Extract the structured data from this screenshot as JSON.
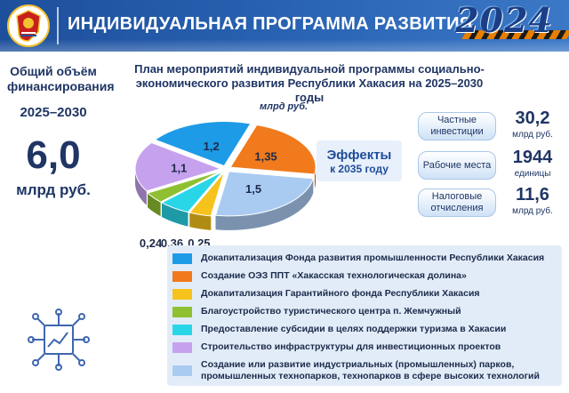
{
  "header": {
    "title": "ИНДИВИДУАЛЬНАЯ ПРОГРАММА РАЗВИТИЯ",
    "year": "2024",
    "emblem_icon": "republic-khakassia-emblem-icon"
  },
  "left_panel": {
    "label": "Общий объём финансирования",
    "period": "2025–2030",
    "value": "6,0",
    "unit": "млрд руб."
  },
  "chart_data": {
    "type": "pie",
    "title": "План мероприятий индивидуальной программы социально-экономического развития Республики Хакасия на 2025–2030 годы",
    "unit_label": "млрд руб.",
    "slices": [
      {
        "label": "Докапитализация Фонда развития промышленности Республики Хакасия",
        "value": 1.2,
        "display": "1,2",
        "color": "#1e9be6"
      },
      {
        "label": "Создание ОЭЗ ППТ «Хакасская технологическая долина»",
        "value": 1.35,
        "display": "1,35",
        "color": "#f07a1c"
      },
      {
        "label": "Создание или развитие индустриальных (промышленных) парков, промышленных технопарков, технопарков в сфере высоких технологий",
        "value": 1.5,
        "display": "1,5",
        "color": "#a9cbf2"
      },
      {
        "label": "Докапитализация Гарантийного фонда Республики Хакасия",
        "value": 0.25,
        "display": "0,25",
        "color": "#f6c21c"
      },
      {
        "label": "Предоставление субсидии в целях поддержки туризма в Хакасии",
        "value": 0.36,
        "display": "0,36",
        "color": "#29d6e8"
      },
      {
        "label": "Благоустройство туристического центра п. Жемчужный",
        "value": 0.24,
        "display": "0,24",
        "color": "#8fc031"
      },
      {
        "label": "Строительство инфраструктуры для инвестиционных проектов",
        "value": 1.1,
        "display": "1,1",
        "color": "#c6a2ee"
      }
    ]
  },
  "effects": {
    "title": "Эффекты",
    "subtitle": "к 2035 году",
    "items": [
      {
        "label": "Частные инвестиции",
        "value": "30,2",
        "unit": "млрд руб."
      },
      {
        "label": "Рабочие места",
        "value": "1944",
        "unit": "единицы"
      },
      {
        "label": "Налоговые отчисления",
        "value": "11,6",
        "unit": "млрд руб."
      }
    ]
  },
  "legend": {
    "items": [
      {
        "label": "Докапитализация Фонда развития промышленности Республики Хакасия",
        "color": "#1e9be6"
      },
      {
        "label": "Создание ОЭЗ ППТ «Хакасская технологическая долина»",
        "color": "#f07a1c"
      },
      {
        "label": "Докапитализация Гарантийного фонда Республики Хакасия",
        "color": "#f6c21c"
      },
      {
        "label": "Благоустройство туристического центра п. Жемчужный",
        "color": "#8fc031"
      },
      {
        "label": "Предоставление субсидии в целях поддержки туризма в Хакасии",
        "color": "#29d6e8"
      },
      {
        "label": "Строительство инфраструктуры для инвестиционных проектов",
        "color": "#c6a2ee"
      },
      {
        "label": "Создание или развитие индустриальных (промышленных) парков, промышленных технопарков, технопарков в сфере высоких технологий",
        "color": "#a9cbf2"
      }
    ]
  },
  "decor": {
    "bottom_icon": "growth-chart-network-icon"
  }
}
